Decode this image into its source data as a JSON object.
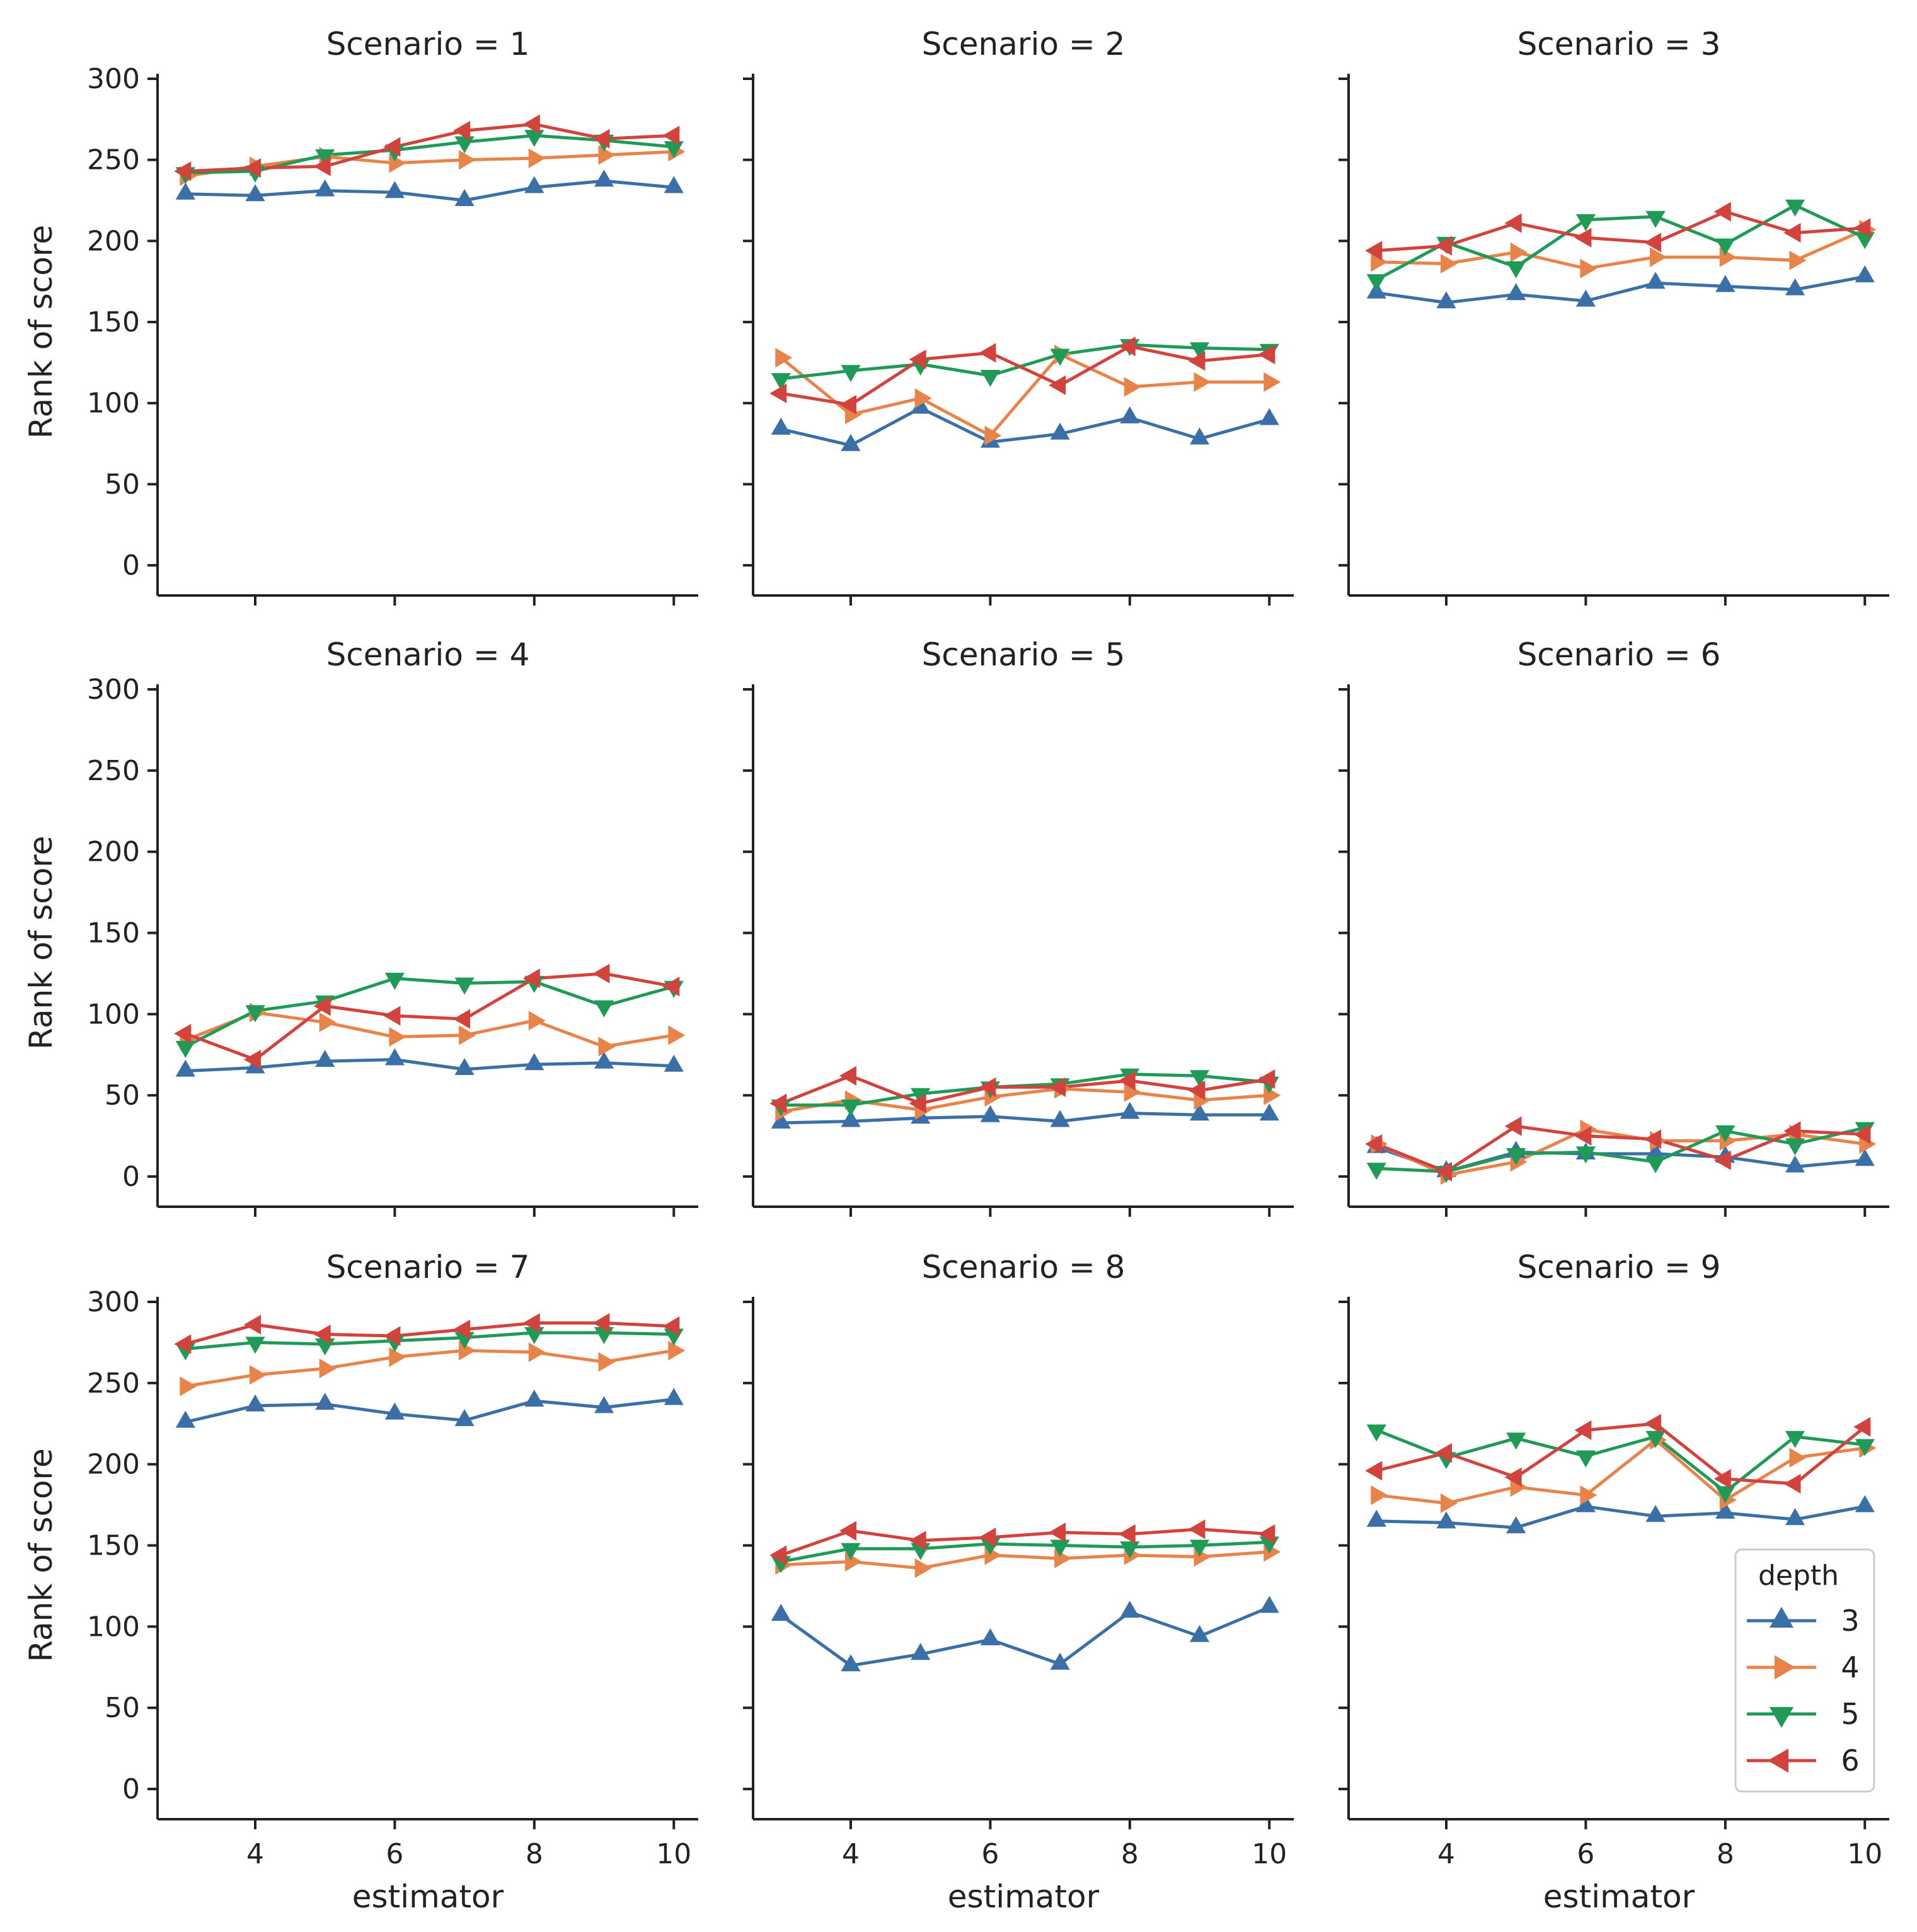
{
  "chart_data": {
    "type": "line",
    "layout": "facet-grid",
    "x": [
      3,
      4,
      5,
      6,
      7,
      8,
      9,
      10
    ],
    "xlabel": "estimator",
    "ylabel": "Rank of score",
    "xticks": [
      4,
      6,
      8,
      10
    ],
    "yticks": [
      0,
      50,
      100,
      150,
      200,
      250,
      300
    ],
    "ylim": [
      -12,
      300
    ],
    "xlim": [
      2.6,
      10.35
    ],
    "grid": false,
    "legend": {
      "title": "depth",
      "placement": "bottom-right",
      "entries": [
        {
          "label": "3",
          "color": "#3a6fa8",
          "marker": "triangle-up"
        },
        {
          "label": "4",
          "color": "#e8844a",
          "marker": "triangle-right"
        },
        {
          "label": "5",
          "color": "#1f9a57",
          "marker": "triangle-down"
        },
        {
          "label": "6",
          "color": "#d2433d",
          "marker": "triangle-left"
        }
      ]
    },
    "panels": [
      {
        "title": "Scenario = 1",
        "series": [
          {
            "name": "3",
            "values": [
              229,
              228,
              231,
              230,
              225,
              233,
              237,
              233
            ]
          },
          {
            "name": "4",
            "values": [
              240,
              246,
              252,
              248,
              250,
              251,
              253,
              255
            ]
          },
          {
            "name": "5",
            "values": [
              242,
              243,
              253,
              256,
              261,
              265,
              262,
              258
            ]
          },
          {
            "name": "6",
            "values": [
              243,
              245,
              246,
              258,
              268,
              272,
              263,
              265
            ]
          }
        ]
      },
      {
        "title": "Scenario = 2",
        "series": [
          {
            "name": "3",
            "values": [
              84,
              74,
              97,
              76,
              81,
              91,
              78,
              90
            ]
          },
          {
            "name": "4",
            "values": [
              128,
              93,
              103,
              80,
              130,
              110,
              113,
              113
            ]
          },
          {
            "name": "5",
            "values": [
              115,
              120,
              124,
              117,
              130,
              136,
              134,
              133
            ]
          },
          {
            "name": "6",
            "values": [
              106,
              99,
              127,
              131,
              111,
              135,
              126,
              130
            ]
          }
        ]
      },
      {
        "title": "Scenario = 3",
        "series": [
          {
            "name": "3",
            "values": [
              168,
              162,
              167,
              163,
              174,
              172,
              170,
              178
            ]
          },
          {
            "name": "4",
            "values": [
              187,
              186,
              193,
              183,
              190,
              190,
              188,
              207
            ]
          },
          {
            "name": "5",
            "values": [
              176,
              199,
              184,
              213,
              215,
              198,
              222,
              202
            ]
          },
          {
            "name": "6",
            "values": [
              194,
              197,
              211,
              202,
              199,
              218,
              205,
              208
            ]
          }
        ]
      },
      {
        "title": "Scenario = 4",
        "series": [
          {
            "name": "3",
            "values": [
              65,
              67,
              71,
              72,
              66,
              69,
              70,
              68
            ]
          },
          {
            "name": "4",
            "values": [
              84,
              101,
              95,
              86,
              87,
              96,
              80,
              87
            ]
          },
          {
            "name": "5",
            "values": [
              80,
              102,
              108,
              122,
              119,
              120,
              105,
              117
            ]
          },
          {
            "name": "6",
            "values": [
              88,
              72,
              105,
              99,
              97,
              122,
              125,
              117
            ]
          }
        ]
      },
      {
        "title": "Scenario = 5",
        "series": [
          {
            "name": "3",
            "values": [
              33,
              34,
              36,
              37,
              34,
              39,
              38,
              38
            ]
          },
          {
            "name": "4",
            "values": [
              40,
              47,
              41,
              49,
              54,
              52,
              47,
              50
            ]
          },
          {
            "name": "5",
            "values": [
              44,
              44,
              51,
              55,
              57,
              63,
              62,
              58
            ]
          },
          {
            "name": "6",
            "values": [
              45,
              62,
              45,
              55,
              55,
              59,
              53,
              60
            ]
          }
        ]
      },
      {
        "title": "Scenario = 6",
        "series": [
          {
            "name": "3",
            "values": [
              18,
              3,
              15,
              14,
              14,
              12,
              6,
              10
            ]
          },
          {
            "name": "4",
            "values": [
              20,
              1,
              9,
              29,
              22,
              22,
              26,
              20
            ]
          },
          {
            "name": "5",
            "values": [
              5,
              3,
              14,
              15,
              9,
              28,
              20,
              30
            ]
          },
          {
            "name": "6",
            "values": [
              20,
              3,
              31,
              25,
              23,
              10,
              28,
              26
            ]
          }
        ]
      },
      {
        "title": "Scenario = 7",
        "series": [
          {
            "name": "3",
            "values": [
              226,
              236,
              237,
              231,
              227,
              239,
              235,
              240
            ]
          },
          {
            "name": "4",
            "values": [
              248,
              255,
              259,
              266,
              270,
              269,
              263,
              270
            ]
          },
          {
            "name": "5",
            "values": [
              271,
              275,
              274,
              276,
              278,
              281,
              281,
              280
            ]
          },
          {
            "name": "6",
            "values": [
              274,
              286,
              280,
              279,
              283,
              287,
              287,
              285
            ]
          }
        ]
      },
      {
        "title": "Scenario = 8",
        "series": [
          {
            "name": "3",
            "values": [
              107,
              76,
              83,
              92,
              77,
              109,
              94,
              112
            ]
          },
          {
            "name": "4",
            "values": [
              138,
              140,
              136,
              144,
              142,
              144,
              143,
              146
            ]
          },
          {
            "name": "5",
            "values": [
              140,
              148,
              148,
              151,
              150,
              149,
              150,
              152
            ]
          },
          {
            "name": "6",
            "values": [
              144,
              159,
              153,
              155,
              158,
              157,
              160,
              157
            ]
          }
        ]
      },
      {
        "title": "Scenario = 9",
        "series": [
          {
            "name": "3",
            "values": [
              165,
              164,
              161,
              174,
              168,
              170,
              166,
              174
            ]
          },
          {
            "name": "4",
            "values": [
              181,
              176,
              186,
              181,
              215,
              178,
              204,
              210
            ]
          },
          {
            "name": "5",
            "values": [
              221,
              204,
              216,
              205,
              217,
              183,
              217,
              212
            ]
          },
          {
            "name": "6",
            "values": [
              196,
              207,
              192,
              221,
              225,
              191,
              188,
              223
            ]
          }
        ]
      }
    ]
  }
}
